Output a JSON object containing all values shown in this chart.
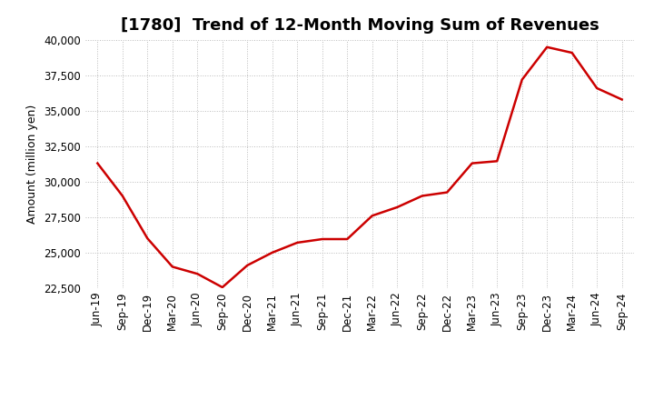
{
  "title": "[1780]  Trend of 12-Month Moving Sum of Revenues",
  "ylabel": "Amount (million yen)",
  "line_color": "#CC0000",
  "line_width": 1.8,
  "background_color": "#FFFFFF",
  "grid_color": "#BBBBBB",
  "ylim": [
    22500,
    40000
  ],
  "yticks": [
    22500,
    25000,
    27500,
    30000,
    32500,
    35000,
    37500,
    40000
  ],
  "x_labels": [
    "Jun-19",
    "Sep-19",
    "Dec-19",
    "Mar-20",
    "Jun-20",
    "Sep-20",
    "Dec-20",
    "Mar-21",
    "Jun-21",
    "Sep-21",
    "Dec-21",
    "Mar-22",
    "Jun-22",
    "Sep-22",
    "Dec-22",
    "Mar-23",
    "Jun-23",
    "Sep-23",
    "Dec-23",
    "Mar-24",
    "Jun-24",
    "Sep-24"
  ],
  "values": [
    31300,
    29000,
    26000,
    24000,
    23500,
    22550,
    24100,
    25000,
    25700,
    25950,
    25950,
    27600,
    28200,
    29000,
    29250,
    31300,
    31450,
    37200,
    39500,
    39100,
    36600,
    35800
  ],
  "title_fontsize": 13,
  "ylabel_fontsize": 9,
  "tick_fontsize": 8.5
}
